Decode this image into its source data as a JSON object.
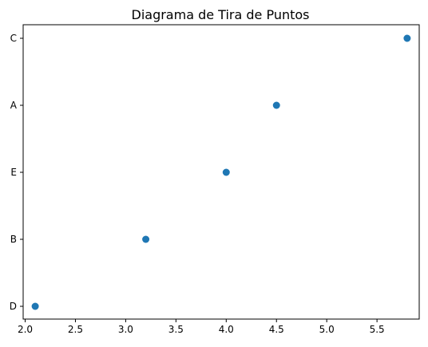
{
  "chart_data": {
    "type": "scatter",
    "title": "Diagrama de Tira de Puntos",
    "xlabel": "",
    "ylabel": "",
    "xlim": [
      1.98,
      5.92
    ],
    "x_ticks": [
      2.0,
      2.5,
      3.0,
      3.5,
      4.0,
      4.5,
      5.0,
      5.5
    ],
    "x_tick_labels": [
      "2.0",
      "2.5",
      "3.0",
      "3.5",
      "4.0",
      "4.5",
      "5.0",
      "5.5"
    ],
    "categories": [
      "D",
      "B",
      "E",
      "A",
      "C"
    ],
    "points": [
      {
        "category": "D",
        "x": 2.1
      },
      {
        "category": "B",
        "x": 3.2
      },
      {
        "category": "E",
        "x": 4.0
      },
      {
        "category": "A",
        "x": 4.5
      },
      {
        "category": "C",
        "x": 5.8
      }
    ],
    "marker_color": "#1f77b4",
    "grid": false,
    "legend": "none"
  }
}
